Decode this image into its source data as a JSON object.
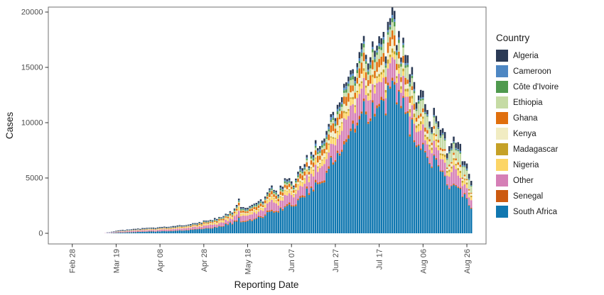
{
  "chart_data": {
    "type": "bar",
    "variant": "stacked-daily-bars",
    "title": "",
    "xlabel": "Reporting Date",
    "ylabel": "Cases",
    "legend_title": "Country",
    "legend_position": "right",
    "grid": false,
    "ylim": [
      0,
      20000
    ],
    "yticks": [
      0,
      5000,
      10000,
      15000,
      20000
    ],
    "xticks": [
      {
        "day": -15,
        "label": "Feb 28"
      },
      {
        "day": 5,
        "label": "Mar 19"
      },
      {
        "day": 25,
        "label": "Apr 08"
      },
      {
        "day": 45,
        "label": "Apr 28"
      },
      {
        "day": 65,
        "label": "May 18"
      },
      {
        "day": 85,
        "label": "Jun 07"
      },
      {
        "day": 105,
        "label": "Jun 27"
      },
      {
        "day": 125,
        "label": "Jul 17"
      },
      {
        "day": 145,
        "label": "Aug 06"
      },
      {
        "day": 165,
        "label": "Aug 26"
      }
    ],
    "countries": [
      {
        "name": "Algeria",
        "color": "#2b3a55"
      },
      {
        "name": "Cameroon",
        "color": "#4e87c3"
      },
      {
        "name": "Côte d'Ivoire",
        "color": "#4f9a4e"
      },
      {
        "name": "Ethiopia",
        "color": "#c5dba4"
      },
      {
        "name": "Ghana",
        "color": "#e06f0d"
      },
      {
        "name": "Kenya",
        "color": "#f1ecc2"
      },
      {
        "name": "Madagascar",
        "color": "#c5a127"
      },
      {
        "name": "Nigeria",
        "color": "#fcd566"
      },
      {
        "name": "Other",
        "color": "#d57fb6"
      },
      {
        "name": "Senegal",
        "color": "#cc5a10"
      },
      {
        "name": "South Africa",
        "color": "#1077b0"
      }
    ],
    "stack_order_bottom_to_top": [
      "South Africa",
      "Senegal",
      "Other",
      "Nigeria",
      "Madagascar",
      "Kenya",
      "Ghana",
      "Ethiopia",
      "Côte d'Ivoire",
      "Cameroon",
      "Algeria"
    ],
    "daily": {
      "first_bar_date": "Mar 14",
      "last_bar_date": "Aug 28",
      "n_days": 168,
      "total_knots": [
        [
          0,
          60
        ],
        [
          3,
          140
        ],
        [
          6,
          260
        ],
        [
          10,
          340
        ],
        [
          14,
          420
        ],
        [
          17,
          450
        ],
        [
          21,
          480
        ],
        [
          25,
          540
        ],
        [
          29,
          620
        ],
        [
          33,
          700
        ],
        [
          37,
          800
        ],
        [
          41,
          950
        ],
        [
          45,
          1100
        ],
        [
          49,
          1250
        ],
        [
          53,
          1500
        ],
        [
          57,
          1900
        ],
        [
          60,
          2400
        ],
        [
          61,
          3300
        ],
        [
          62,
          2300
        ],
        [
          65,
          2550
        ],
        [
          69,
          2900
        ],
        [
          73,
          3300
        ],
        [
          76,
          4400
        ],
        [
          78,
          3700
        ],
        [
          81,
          4400
        ],
        [
          83,
          5200
        ],
        [
          85,
          4900
        ],
        [
          87,
          5300
        ],
        [
          89,
          5800
        ],
        [
          91,
          6300
        ],
        [
          93,
          7000
        ],
        [
          95,
          7600
        ],
        [
          96,
          8300
        ],
        [
          98,
          7600
        ],
        [
          100,
          9300
        ],
        [
          102,
          10400
        ],
        [
          104,
          11200
        ],
        [
          105,
          10400
        ],
        [
          107,
          12300
        ],
        [
          109,
          12900
        ],
        [
          110,
          13600
        ],
        [
          112,
          14300
        ],
        [
          114,
          15200
        ],
        [
          116,
          16200
        ],
        [
          118,
          17600
        ],
        [
          119,
          16000
        ],
        [
          121,
          16800
        ],
        [
          123,
          17400
        ],
        [
          125,
          18200
        ],
        [
          127,
          17500
        ],
        [
          129,
          18700
        ],
        [
          131,
          19450
        ],
        [
          133,
          18200
        ],
        [
          135,
          17400
        ],
        [
          137,
          16300
        ],
        [
          139,
          15000
        ],
        [
          141,
          13600
        ],
        [
          143,
          12600
        ],
        [
          145,
          12200
        ],
        [
          147,
          11400
        ],
        [
          148,
          10500
        ],
        [
          150,
          11500
        ],
        [
          152,
          10800
        ],
        [
          154,
          9300
        ],
        [
          156,
          8200
        ],
        [
          158,
          8600
        ],
        [
          160,
          8700
        ],
        [
          162,
          8300
        ],
        [
          164,
          6800
        ],
        [
          166,
          5600
        ],
        [
          167,
          4600
        ]
      ],
      "share_knots": {
        "days": [
          0,
          17,
          45,
          77,
          105,
          131,
          150,
          168
        ],
        "shares": {
          "South Africa": [
            0.18,
            0.3,
            0.38,
            0.5,
            0.6,
            0.68,
            0.6,
            0.45
          ],
          "Senegal": [
            0.1,
            0.05,
            0.04,
            0.03,
            0.02,
            0.01,
            0.01,
            0.015
          ],
          "Other": [
            0.24,
            0.22,
            0.2,
            0.17,
            0.13,
            0.09,
            0.12,
            0.16
          ],
          "Nigeria": [
            0.04,
            0.06,
            0.09,
            0.08,
            0.05,
            0.025,
            0.04,
            0.06
          ],
          "Madagascar": [
            0.01,
            0.01,
            0.01,
            0.01,
            0.01,
            0.015,
            0.02,
            0.025
          ],
          "Kenya": [
            0.04,
            0.03,
            0.03,
            0.03,
            0.04,
            0.03,
            0.03,
            0.035
          ],
          "Ghana": [
            0.04,
            0.07,
            0.09,
            0.07,
            0.05,
            0.04,
            0.02,
            0.02
          ],
          "Ethiopia": [
            0.02,
            0.02,
            0.02,
            0.02,
            0.03,
            0.045,
            0.09,
            0.14
          ],
          "Côte d'Ivoire": [
            0.05,
            0.04,
            0.04,
            0.03,
            0.02,
            0.015,
            0.01,
            0.01
          ],
          "Cameroon": [
            0.08,
            0.07,
            0.04,
            0.02,
            0.02,
            0.01,
            0.01,
            0.015
          ],
          "Algeria": [
            0.2,
            0.13,
            0.06,
            0.04,
            0.03,
            0.03,
            0.05,
            0.07
          ]
        }
      },
      "jitter": {
        "seed": 7,
        "total_amp": 0.07,
        "share_amp": 0.3
      },
      "weekly_dip": {
        "period": 7,
        "phase": 2,
        "depth": 0.1
      }
    },
    "style": {
      "panel_border_color": "#707070",
      "tick_color": "#333333",
      "tick_label_color": "#4d4d4d",
      "title_color": "#1a1a1a",
      "background": "#ffffff"
    }
  }
}
